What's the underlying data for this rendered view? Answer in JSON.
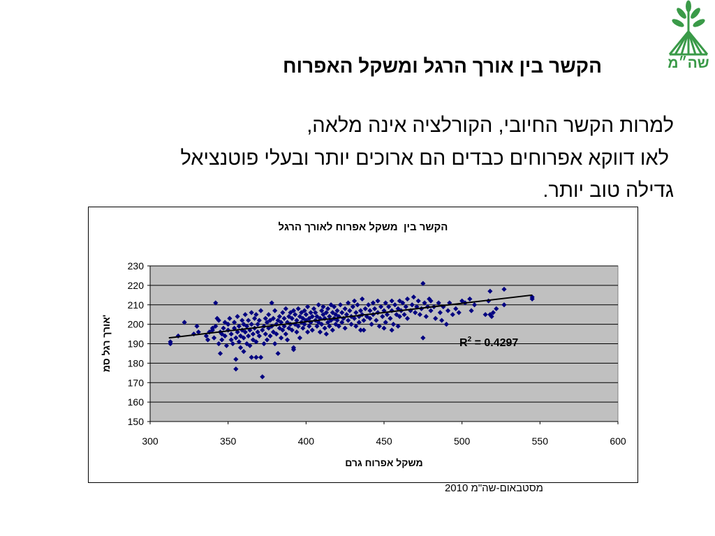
{
  "logo": {
    "text": "שה״מ",
    "color": "#3a9a48"
  },
  "slide": {
    "title": "הקשר בין אורך הרגל ומשקל האפרוח",
    "body_lines": [
      "למרות הקשר החיובי, הקורלציה אינה מלאה,",
      "לאו דווקא אפרוחים כבדים הם ארוכים יותר ובעלי פוטנציאל",
      "גדילה טוב יותר."
    ],
    "footer": "מסטבאום-שה\"מ 2010"
  },
  "chart_data": {
    "type": "scatter",
    "title": "הקשר בין  משקל אפרוח לאורך הרגל",
    "xlabel": "משקל אפרוח גרם",
    "ylabel": "אורך רגל סמ'",
    "xlim": [
      300,
      600
    ],
    "ylim": [
      150,
      230
    ],
    "x_ticks": [
      300,
      350,
      400,
      450,
      500,
      550,
      600
    ],
    "y_ticks": [
      150,
      160,
      170,
      180,
      190,
      200,
      210,
      220,
      230
    ],
    "grid": "horizontal",
    "legend": "none",
    "plot_bg": "#c0c0c0",
    "point_color": "#000080",
    "trendline": {
      "type": "linear",
      "x": [
        312,
        545
      ],
      "y": [
        193,
        215
      ],
      "color": "#000000"
    },
    "annotation": {
      "base": "R",
      "sup": "2",
      "rest": " = 0.4297"
    },
    "points": [
      [
        313,
        191
      ],
      [
        313,
        190
      ],
      [
        318,
        194
      ],
      [
        322,
        201
      ],
      [
        328,
        195
      ],
      [
        330,
        199
      ],
      [
        331,
        196
      ],
      [
        336,
        194
      ],
      [
        337,
        192
      ],
      [
        338,
        196
      ],
      [
        340,
        198
      ],
      [
        340,
        197
      ],
      [
        341,
        193
      ],
      [
        342,
        211
      ],
      [
        342,
        199
      ],
      [
        343,
        203
      ],
      [
        344,
        190
      ],
      [
        345,
        185
      ],
      [
        344,
        202
      ],
      [
        345,
        196
      ],
      [
        346,
        192
      ],
      [
        347,
        198
      ],
      [
        348,
        201
      ],
      [
        346,
        195
      ],
      [
        348,
        194
      ],
      [
        349,
        189
      ],
      [
        350,
        197
      ],
      [
        350,
        200
      ],
      [
        351,
        203
      ],
      [
        352,
        192
      ],
      [
        352,
        195
      ],
      [
        353,
        190
      ],
      [
        354,
        198
      ],
      [
        354,
        201
      ],
      [
        355,
        177
      ],
      [
        355,
        182
      ],
      [
        355,
        193
      ],
      [
        356,
        196
      ],
      [
        356,
        204
      ],
      [
        357,
        199
      ],
      [
        357,
        191
      ],
      [
        358,
        188
      ],
      [
        358,
        194
      ],
      [
        359,
        202
      ],
      [
        359,
        197
      ],
      [
        360,
        186
      ],
      [
        360,
        200
      ],
      [
        360,
        193
      ],
      [
        361,
        205
      ],
      [
        361,
        196
      ],
      [
        362,
        190
      ],
      [
        362,
        199
      ],
      [
        363,
        202
      ],
      [
        363,
        194
      ],
      [
        364,
        197
      ],
      [
        364,
        189
      ],
      [
        365,
        183
      ],
      [
        365,
        206
      ],
      [
        365,
        200
      ],
      [
        366,
        192
      ],
      [
        366,
        195
      ],
      [
        367,
        203
      ],
      [
        367,
        198
      ],
      [
        368,
        183
      ],
      [
        368,
        191
      ],
      [
        368,
        205
      ],
      [
        369,
        196
      ],
      [
        369,
        200
      ],
      [
        370,
        194
      ],
      [
        370,
        202
      ],
      [
        371,
        183
      ],
      [
        371,
        207
      ],
      [
        372,
        173
      ],
      [
        372,
        197
      ],
      [
        373,
        190
      ],
      [
        373,
        199
      ],
      [
        374,
        203
      ],
      [
        374,
        195
      ],
      [
        375,
        192
      ],
      [
        375,
        201
      ],
      [
        376,
        198
      ],
      [
        376,
        205
      ],
      [
        377,
        194
      ],
      [
        377,
        202
      ],
      [
        378,
        211
      ],
      [
        378,
        199
      ],
      [
        379,
        196
      ],
      [
        379,
        203
      ],
      [
        380,
        190
      ],
      [
        380,
        207
      ],
      [
        381,
        200
      ],
      [
        381,
        195
      ],
      [
        382,
        185
      ],
      [
        382,
        202
      ],
      [
        383,
        198
      ],
      [
        383,
        204
      ],
      [
        384,
        193
      ],
      [
        384,
        201
      ],
      [
        385,
        206
      ],
      [
        385,
        197
      ],
      [
        386,
        199
      ],
      [
        386,
        203
      ],
      [
        387,
        195
      ],
      [
        387,
        208
      ],
      [
        388,
        201
      ],
      [
        388,
        192
      ],
      [
        389,
        204
      ],
      [
        389,
        198
      ],
      [
        390,
        200
      ],
      [
        390,
        206
      ],
      [
        391,
        203
      ],
      [
        391,
        197
      ],
      [
        392,
        188
      ],
      [
        392,
        187
      ],
      [
        392,
        207
      ],
      [
        393,
        200
      ],
      [
        393,
        205
      ],
      [
        394,
        196
      ],
      [
        394,
        202
      ],
      [
        395,
        208
      ],
      [
        395,
        199
      ],
      [
        396,
        204
      ],
      [
        396,
        193
      ],
      [
        397,
        201
      ],
      [
        397,
        206
      ],
      [
        398,
        198
      ],
      [
        398,
        203
      ],
      [
        399,
        207
      ],
      [
        399,
        200
      ],
      [
        400,
        205
      ],
      [
        400,
        202
      ],
      [
        401,
        196
      ],
      [
        401,
        209
      ],
      [
        402,
        203
      ],
      [
        402,
        199
      ],
      [
        403,
        206
      ],
      [
        403,
        201
      ],
      [
        404,
        204
      ],
      [
        404,
        197
      ],
      [
        405,
        208
      ],
      [
        406,
        202
      ],
      [
        406,
        206
      ],
      [
        407,
        199
      ],
      [
        407,
        204
      ],
      [
        408,
        210
      ],
      [
        408,
        201
      ],
      [
        409,
        203
      ],
      [
        409,
        196
      ],
      [
        410,
        207
      ],
      [
        410,
        200
      ],
      [
        411,
        205
      ],
      [
        411,
        209
      ],
      [
        412,
        198
      ],
      [
        412,
        203
      ],
      [
        413,
        206
      ],
      [
        413,
        195
      ],
      [
        414,
        201
      ],
      [
        414,
        208
      ],
      [
        415,
        204
      ],
      [
        415,
        199
      ],
      [
        416,
        210
      ],
      [
        416,
        202
      ],
      [
        417,
        206
      ],
      [
        417,
        197
      ],
      [
        418,
        203
      ],
      [
        418,
        209
      ],
      [
        419,
        200
      ],
      [
        419,
        205
      ],
      [
        420,
        207
      ],
      [
        420,
        202
      ],
      [
        421,
        204
      ],
      [
        421,
        199
      ],
      [
        422,
        210
      ],
      [
        423,
        206
      ],
      [
        423,
        201
      ],
      [
        424,
        203
      ],
      [
        425,
        208
      ],
      [
        425,
        198
      ],
      [
        426,
        205
      ],
      [
        427,
        211
      ],
      [
        427,
        202
      ],
      [
        428,
        207
      ],
      [
        429,
        200
      ],
      [
        429,
        204
      ],
      [
        430,
        209
      ],
      [
        431,
        212
      ],
      [
        431,
        203
      ],
      [
        432,
        206
      ],
      [
        432,
        199
      ],
      [
        433,
        210
      ],
      [
        434,
        204
      ],
      [
        434,
        201
      ],
      [
        435,
        207
      ],
      [
        435,
        197
      ],
      [
        436,
        213
      ],
      [
        436,
        205
      ],
      [
        437,
        202
      ],
      [
        437,
        197
      ],
      [
        438,
        208
      ],
      [
        439,
        204
      ],
      [
        440,
        210
      ],
      [
        441,
        203
      ],
      [
        441,
        207
      ],
      [
        442,
        200
      ],
      [
        443,
        211
      ],
      [
        443,
        205
      ],
      [
        444,
        208
      ],
      [
        445,
        202
      ],
      [
        446,
        206
      ],
      [
        446,
        212
      ],
      [
        447,
        199
      ],
      [
        448,
        209
      ],
      [
        449,
        204
      ],
      [
        450,
        207
      ],
      [
        450,
        198
      ],
      [
        451,
        211
      ],
      [
        451,
        201
      ],
      [
        452,
        205
      ],
      [
        453,
        209
      ],
      [
        454,
        203
      ],
      [
        455,
        212
      ],
      [
        455,
        207
      ],
      [
        455,
        197
      ],
      [
        456,
        200
      ],
      [
        457,
        210
      ],
      [
        458,
        205
      ],
      [
        459,
        208
      ],
      [
        459,
        199
      ],
      [
        460,
        212
      ],
      [
        460,
        204
      ],
      [
        461,
        207
      ],
      [
        462,
        211
      ],
      [
        463,
        205
      ],
      [
        464,
        209
      ],
      [
        465,
        213
      ],
      [
        465,
        203
      ],
      [
        467,
        207
      ],
      [
        468,
        210
      ],
      [
        469,
        214
      ],
      [
        470,
        206
      ],
      [
        471,
        209
      ],
      [
        472,
        212
      ],
      [
        473,
        205
      ],
      [
        474,
        208
      ],
      [
        475,
        221
      ],
      [
        475,
        193
      ],
      [
        476,
        211
      ],
      [
        477,
        204
      ],
      [
        478,
        209
      ],
      [
        479,
        213
      ],
      [
        480,
        207
      ],
      [
        480,
        212
      ],
      [
        482,
        209
      ],
      [
        483,
        203
      ],
      [
        485,
        211
      ],
      [
        486,
        206
      ],
      [
        487,
        202
      ],
      [
        488,
        209
      ],
      [
        490,
        200
      ],
      [
        491,
        207
      ],
      [
        492,
        211
      ],
      [
        494,
        205
      ],
      [
        496,
        208
      ],
      [
        498,
        206
      ],
      [
        500,
        212
      ],
      [
        502,
        211
      ],
      [
        505,
        213
      ],
      [
        506,
        207
      ],
      [
        508,
        210
      ],
      [
        515,
        205
      ],
      [
        517,
        212
      ],
      [
        518,
        217
      ],
      [
        518,
        205
      ],
      [
        519,
        204
      ],
      [
        520,
        206
      ],
      [
        522,
        208
      ],
      [
        527,
        210
      ],
      [
        527,
        218
      ],
      [
        545,
        213
      ],
      [
        545,
        214
      ]
    ]
  }
}
